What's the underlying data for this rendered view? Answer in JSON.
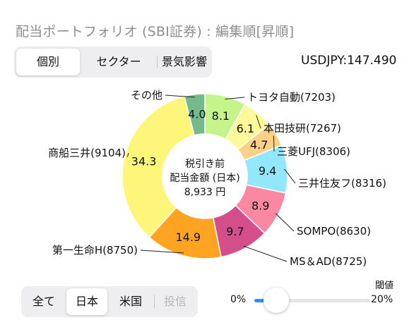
{
  "title": "配当ポートフォリオ (SBI証券) : 編集順[昇順]",
  "view_tabs": [
    "個別",
    "セクター",
    "景気影響"
  ],
  "active_view": "個別",
  "fx_rate": "USDJPY:147.490",
  "chart_data": {
    "type": "pie",
    "style": "donut",
    "center_lines": [
      "税引き前",
      "配当金額 (日本)",
      "8,933 円"
    ],
    "categories": [
      "トヨタ自動(7203)",
      "本田技研(7267)",
      "三菱UFJ(8306)",
      "三井住友フ(8316)",
      "SOMPO(8630)",
      "MS＆AD(8725)",
      "第一生命H(8750)",
      "商船三井(9104)",
      "その他"
    ],
    "values": [
      8.1,
      6.1,
      4.7,
      9.4,
      8.9,
      9.7,
      14.9,
      34.3,
      4.0
    ],
    "value_labels": [
      "8.1",
      "6.1",
      "4.7",
      "9.4",
      "8.9",
      "9.7",
      "14.9",
      "34.3",
      "4.0"
    ],
    "colors": [
      "#c5f58a",
      "#fdf89a",
      "#fdd088",
      "#93e7fb",
      "#fa88a2",
      "#d44e8a",
      "#ffa323",
      "#fdf67a",
      "#76b98c"
    ]
  },
  "market_tabs": [
    "全て",
    "日本",
    "米国",
    "投信"
  ],
  "active_market": "日本",
  "disabled_market": "投信",
  "slider": {
    "title": "閾値",
    "min_label": "0%",
    "max_label": "20%",
    "value_fraction": 0.04
  }
}
